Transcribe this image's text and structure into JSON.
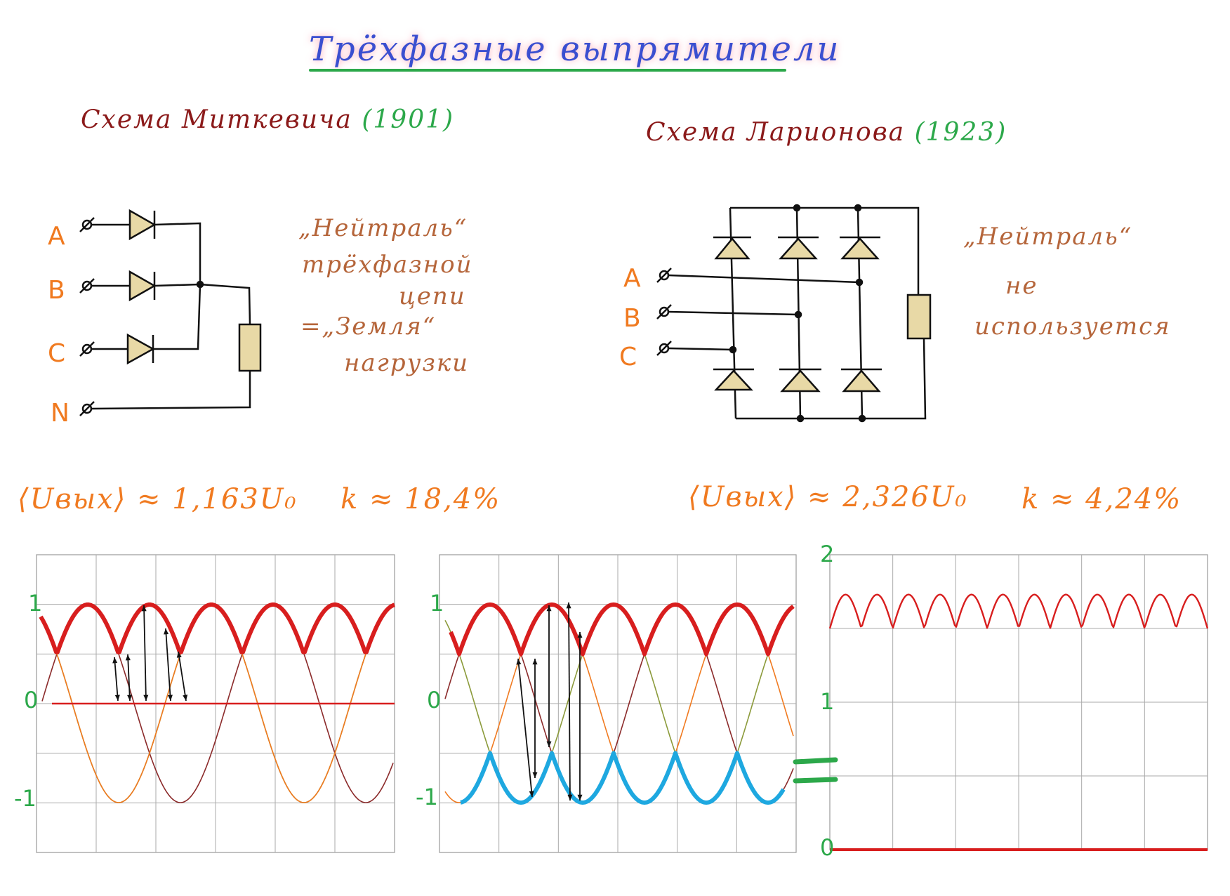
{
  "title": "Трёхфазные выпрямители",
  "left_scheme": {
    "title": "Схема Миткевича",
    "year": "(1901)",
    "phases": [
      "A",
      "B",
      "C",
      "N"
    ],
    "note_lines": [
      "„Нейтраль“",
      "трёхфазной",
      "цепи",
      "=„Земля“",
      "нагрузки"
    ],
    "formula": "⟨Uвых⟩ ≈ 1,163U₀",
    "ripple": "k ≈ 18,4%"
  },
  "right_scheme": {
    "title": "Схема Ларионова",
    "year": "(1923)",
    "phases": [
      "A",
      "B",
      "C"
    ],
    "note_lines": [
      "„Нейтраль“",
      "не",
      "используется"
    ],
    "formula": "⟨Uвых⟩ ≈ 2,326U₀",
    "ripple": "k ≈ 4,24%"
  },
  "graphs": {
    "left_ticks": [
      "1",
      "0",
      "-1"
    ],
    "mid_ticks": [
      "1",
      "0",
      "-1"
    ],
    "right_ticks": [
      "2",
      "1",
      "0"
    ],
    "equals_sign": "="
  },
  "chart_data": [
    {
      "type": "line",
      "series": [
        {
          "values": [
            0.5,
            1,
            0.5,
            1,
            0.5,
            1,
            0.5,
            1,
            0.5,
            1,
            0.5,
            1
          ]
        }
      ],
      "ylim": [
        -1,
        1
      ],
      "colors": [
        "#d81e1e",
        "#f07a20",
        "#8b9a3a",
        "#8b2a2a"
      ]
    },
    {
      "type": "line",
      "series": [
        {
          "values": [
            0.5,
            1,
            0.5,
            1,
            0.5,
            1,
            0.5,
            1,
            0.5,
            1,
            0.5,
            1
          ]
        },
        {
          "values": [
            -1,
            -0.5,
            -1,
            -0.5,
            -1,
            -0.5,
            -1,
            -0.5,
            -1,
            -0.5,
            -1
          ]
        }
      ],
      "ylim": [
        -1,
        1
      ],
      "colors": [
        "#d81e1e",
        "#1ea8e0"
      ]
    },
    {
      "type": "line",
      "series": [
        {
          "values": [
            1.5,
            1.73,
            1.5,
            1.73,
            1.5,
            1.73,
            1.5
          ]
        }
      ],
      "ylim": [
        0,
        2
      ],
      "colors": [
        "#d81e1e"
      ]
    }
  ]
}
